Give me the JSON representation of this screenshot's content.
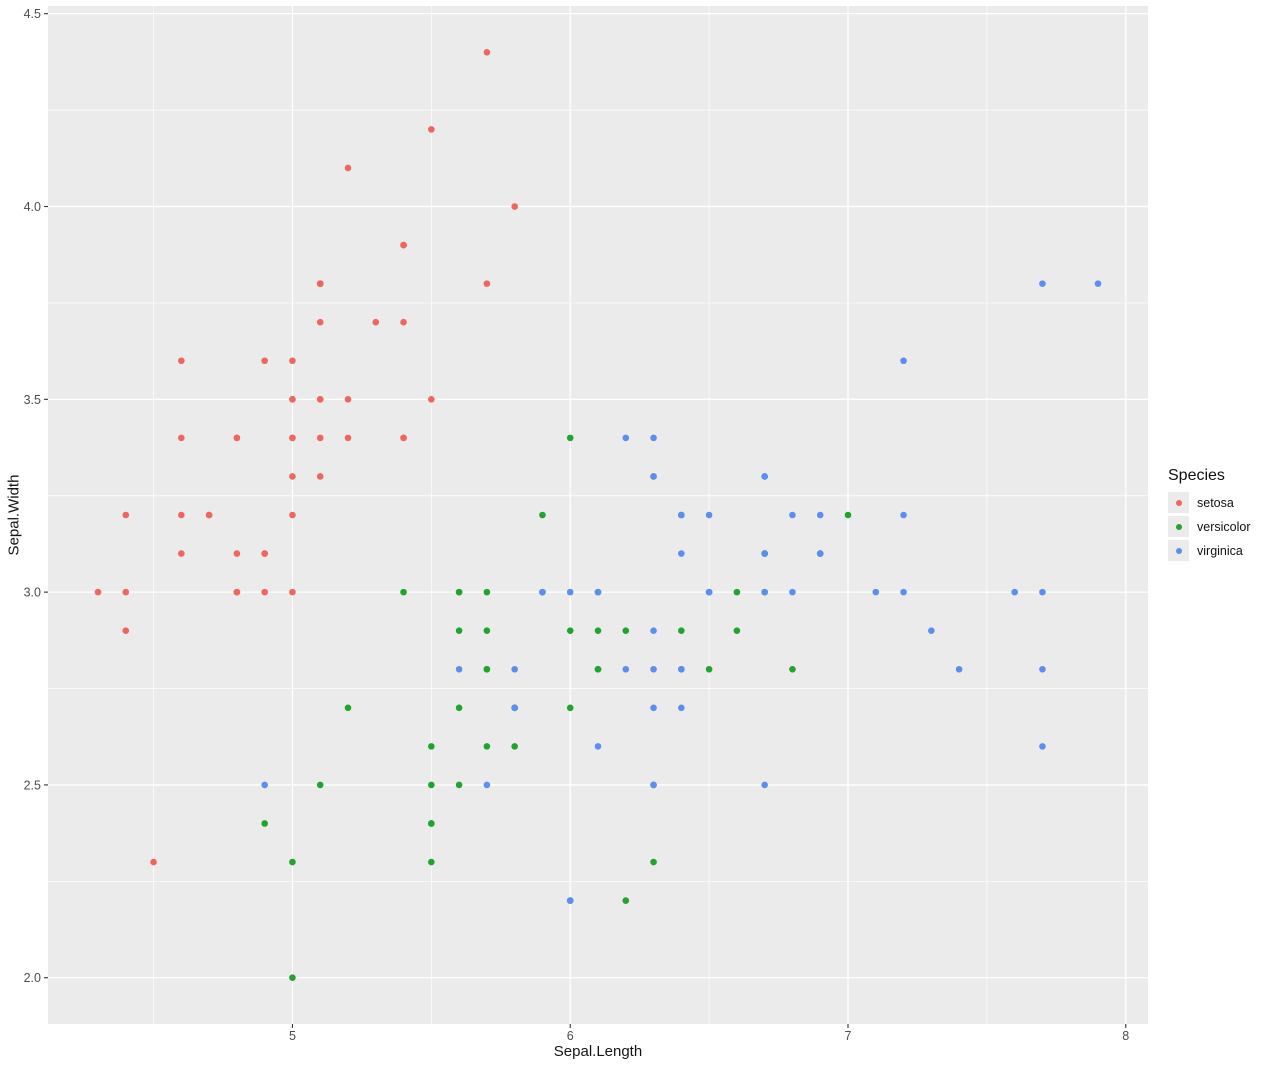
{
  "figure": {
    "background": "#FFFFFF",
    "panel_background": "#EBEBEB",
    "grid_color": "#FFFFFF",
    "tick_mark_color": "#333333",
    "tick_label_color": "#4D4D4D",
    "axis_title_color": "#151515"
  },
  "chart_data": {
    "type": "scatter",
    "title": "",
    "xlabel": "Sepal.Length",
    "ylabel": "Sepal.Width",
    "xlim": [
      4.12,
      8.08
    ],
    "ylim": [
      1.88,
      4.52
    ],
    "grid": true,
    "x_tick_values": [
      5,
      6,
      7,
      8
    ],
    "x_tick_labels": [
      "5",
      "6",
      "7",
      "8"
    ],
    "x_minor_ticks": [
      4.5,
      5.5,
      6.5,
      7.5
    ],
    "y_tick_values": [
      2.0,
      2.5,
      3.0,
      3.5,
      4.0,
      4.5
    ],
    "y_tick_labels": [
      "2.0",
      "2.5",
      "3.0",
      "3.5",
      "4.0",
      "4.5"
    ],
    "y_minor_ticks": [
      2.25,
      2.75,
      3.25,
      3.75,
      4.25
    ],
    "legend": {
      "title": "Species",
      "position": "right",
      "entries": [
        "setosa",
        "versicolor",
        "virginica"
      ]
    },
    "point_radius": 3.3,
    "series": [
      {
        "name": "setosa",
        "color": "#F0655E",
        "points": [
          [
            5.1,
            3.5
          ],
          [
            4.9,
            3.0
          ],
          [
            4.7,
            3.2
          ],
          [
            4.6,
            3.1
          ],
          [
            5.0,
            3.6
          ],
          [
            5.4,
            3.9
          ],
          [
            4.6,
            3.4
          ],
          [
            5.0,
            3.4
          ],
          [
            4.4,
            2.9
          ],
          [
            4.9,
            3.1
          ],
          [
            5.4,
            3.7
          ],
          [
            4.8,
            3.4
          ],
          [
            4.8,
            3.0
          ],
          [
            4.3,
            3.0
          ],
          [
            5.8,
            4.0
          ],
          [
            5.7,
            4.4
          ],
          [
            5.4,
            3.9
          ],
          [
            5.1,
            3.5
          ],
          [
            5.7,
            3.8
          ],
          [
            5.1,
            3.8
          ],
          [
            5.4,
            3.4
          ],
          [
            5.1,
            3.7
          ],
          [
            4.6,
            3.6
          ],
          [
            5.1,
            3.3
          ],
          [
            4.8,
            3.4
          ],
          [
            5.0,
            3.0
          ],
          [
            5.0,
            3.4
          ],
          [
            5.2,
            3.5
          ],
          [
            5.2,
            3.4
          ],
          [
            4.7,
            3.2
          ],
          [
            4.8,
            3.1
          ],
          [
            5.4,
            3.4
          ],
          [
            5.2,
            4.1
          ],
          [
            5.5,
            4.2
          ],
          [
            4.9,
            3.1
          ],
          [
            5.0,
            3.2
          ],
          [
            5.5,
            3.5
          ],
          [
            4.9,
            3.6
          ],
          [
            4.4,
            3.0
          ],
          [
            5.1,
            3.4
          ],
          [
            5.0,
            3.5
          ],
          [
            4.5,
            2.3
          ],
          [
            4.4,
            3.2
          ],
          [
            5.0,
            3.5
          ],
          [
            5.1,
            3.8
          ],
          [
            4.8,
            3.0
          ],
          [
            5.1,
            3.8
          ],
          [
            4.6,
            3.2
          ],
          [
            5.3,
            3.7
          ],
          [
            5.0,
            3.3
          ]
        ]
      },
      {
        "name": "versicolor",
        "color": "#1FA42D",
        "points": [
          [
            7.0,
            3.2
          ],
          [
            6.4,
            3.2
          ],
          [
            6.9,
            3.1
          ],
          [
            5.5,
            2.3
          ],
          [
            6.5,
            2.8
          ],
          [
            5.7,
            2.8
          ],
          [
            6.3,
            3.3
          ],
          [
            4.9,
            2.4
          ],
          [
            6.6,
            2.9
          ],
          [
            5.2,
            2.7
          ],
          [
            5.0,
            2.0
          ],
          [
            5.9,
            3.0
          ],
          [
            6.0,
            2.2
          ],
          [
            6.1,
            2.9
          ],
          [
            5.6,
            2.9
          ],
          [
            6.7,
            3.1
          ],
          [
            5.6,
            3.0
          ],
          [
            5.8,
            2.7
          ],
          [
            6.2,
            2.2
          ],
          [
            5.6,
            2.5
          ],
          [
            5.9,
            3.2
          ],
          [
            6.1,
            2.8
          ],
          [
            6.3,
            2.5
          ],
          [
            6.1,
            2.8
          ],
          [
            6.4,
            2.9
          ],
          [
            6.6,
            3.0
          ],
          [
            6.8,
            2.8
          ],
          [
            6.7,
            3.0
          ],
          [
            6.0,
            2.9
          ],
          [
            5.7,
            2.6
          ],
          [
            5.5,
            2.4
          ],
          [
            5.5,
            2.4
          ],
          [
            5.8,
            2.7
          ],
          [
            6.0,
            2.7
          ],
          [
            5.4,
            3.0
          ],
          [
            6.0,
            3.4
          ],
          [
            6.7,
            3.1
          ],
          [
            6.3,
            2.3
          ],
          [
            5.6,
            3.0
          ],
          [
            5.5,
            2.5
          ],
          [
            5.5,
            2.6
          ],
          [
            6.1,
            3.0
          ],
          [
            5.8,
            2.6
          ],
          [
            5.0,
            2.3
          ],
          [
            5.6,
            2.7
          ],
          [
            5.7,
            3.0
          ],
          [
            5.7,
            2.9
          ],
          [
            6.2,
            2.9
          ],
          [
            5.1,
            2.5
          ],
          [
            5.7,
            2.8
          ]
        ]
      },
      {
        "name": "virginica",
        "color": "#5C8EF2",
        "points": [
          [
            6.3,
            3.3
          ],
          [
            5.8,
            2.7
          ],
          [
            7.1,
            3.0
          ],
          [
            6.3,
            2.9
          ],
          [
            6.5,
            3.0
          ],
          [
            7.6,
            3.0
          ],
          [
            4.9,
            2.5
          ],
          [
            7.3,
            2.9
          ],
          [
            6.7,
            2.5
          ],
          [
            7.2,
            3.6
          ],
          [
            6.5,
            3.2
          ],
          [
            6.4,
            2.7
          ],
          [
            6.8,
            3.0
          ],
          [
            5.7,
            2.5
          ],
          [
            5.8,
            2.8
          ],
          [
            6.4,
            3.2
          ],
          [
            6.5,
            3.0
          ],
          [
            7.7,
            3.8
          ],
          [
            7.7,
            2.6
          ],
          [
            6.0,
            2.2
          ],
          [
            6.9,
            3.2
          ],
          [
            5.6,
            2.8
          ],
          [
            7.7,
            2.8
          ],
          [
            6.3,
            2.7
          ],
          [
            6.7,
            3.3
          ],
          [
            7.2,
            3.2
          ],
          [
            6.2,
            2.8
          ],
          [
            6.1,
            3.0
          ],
          [
            6.4,
            2.8
          ],
          [
            7.2,
            3.0
          ],
          [
            7.4,
            2.8
          ],
          [
            7.9,
            3.8
          ],
          [
            6.4,
            2.8
          ],
          [
            6.3,
            2.8
          ],
          [
            6.1,
            2.6
          ],
          [
            7.7,
            3.0
          ],
          [
            6.3,
            3.4
          ],
          [
            6.4,
            3.1
          ],
          [
            6.0,
            3.0
          ],
          [
            6.9,
            3.1
          ],
          [
            6.7,
            3.1
          ],
          [
            6.9,
            3.1
          ],
          [
            5.8,
            2.7
          ],
          [
            6.8,
            3.2
          ],
          [
            6.7,
            3.3
          ],
          [
            6.7,
            3.0
          ],
          [
            6.3,
            2.5
          ],
          [
            6.5,
            3.0
          ],
          [
            6.2,
            3.4
          ],
          [
            5.9,
            3.0
          ]
        ]
      }
    ]
  }
}
